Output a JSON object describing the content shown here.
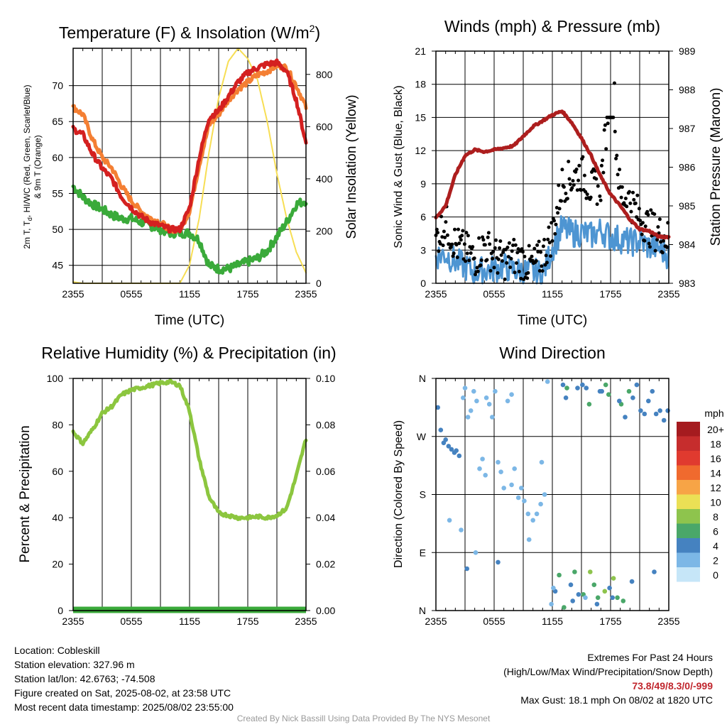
{
  "charts": {
    "temperature": {
      "title": "Temperature (F) & Insolation (W/m",
      "title_sup": "2",
      "title_end": ")",
      "ylabel_line1": "2m T, T",
      "ylabel_sub": "d",
      "ylabel_line1_end": ", HI/WC (Red, Green, Scarlet/Blue)",
      "ylabel_line2": "& 9m T (Orange)",
      "y2label": "Solar Insolation (Yellow)",
      "xlabel": "Time (UTC)"
    },
    "winds": {
      "title": "Winds (mph) & Pressure (mb)",
      "ylabel": "Sonic Wind & Gust (Blue, Black)",
      "y2label": "Station Pressure (Maroon)",
      "xlabel": "Time (UTC)"
    },
    "humidity": {
      "title": "Relative Humidity (%) & Precipitation (in)",
      "ylabel": "Percent & Precipitation"
    },
    "direction": {
      "title": "Wind Direction",
      "ylabel": "Direction (Colored By Speed)",
      "legend_title": "mph"
    }
  },
  "chart_data": [
    {
      "type": "line",
      "title": "Temperature (F) & Insolation (W/m2)",
      "xlabel": "Time (UTC)",
      "xticks": [
        "2355",
        "0555",
        "1155",
        "1755",
        "2355"
      ],
      "xlim_hours": [
        0,
        24
      ],
      "ylim": [
        42.5,
        75.2
      ],
      "yticks": [
        45,
        50,
        55,
        60,
        65,
        70
      ],
      "y2lim": [
        0,
        900
      ],
      "y2ticks": [
        0,
        200,
        400,
        600,
        800
      ],
      "series": [
        {
          "name": "2m T (Red)",
          "color": "#d42020",
          "axis": "y",
          "x": [
            0,
            1,
            2,
            3,
            4,
            5,
            6,
            7,
            8,
            9,
            10,
            11,
            12,
            13,
            14,
            15,
            16,
            17,
            18,
            19,
            20,
            21,
            22,
            23,
            24
          ],
          "y": [
            64,
            63.2,
            60.5,
            58.5,
            57,
            54.5,
            53,
            51.8,
            51,
            50.5,
            50,
            50,
            53,
            60,
            65.5,
            66.5,
            68.5,
            70.5,
            71.8,
            72.5,
            73,
            73.2,
            72,
            68,
            62
          ]
        },
        {
          "name": "Td (Green)",
          "color": "#3aaa3a",
          "axis": "y",
          "x": [
            0,
            1,
            2,
            3,
            4,
            5,
            6,
            7,
            8,
            9,
            10,
            11,
            12,
            13,
            14,
            15,
            16,
            17,
            18,
            19,
            20,
            21,
            22,
            23,
            24
          ],
          "y": [
            56,
            54.5,
            53.5,
            52.8,
            52,
            51.5,
            51.5,
            51,
            50.5,
            50,
            49.5,
            49.5,
            49.5,
            48.5,
            45,
            44.5,
            44.5,
            45,
            45.5,
            46,
            47,
            49,
            51,
            53.5,
            54
          ]
        },
        {
          "name": "9m T (Orange)",
          "color": "#f47f33",
          "axis": "y",
          "x": [
            0,
            1,
            2,
            3,
            4,
            5,
            6,
            7,
            8,
            9,
            10,
            11,
            12,
            13,
            14,
            15,
            16,
            17,
            18,
            19,
            20,
            21,
            22,
            23,
            24
          ],
          "y": [
            67,
            66,
            62.5,
            60,
            58.5,
            56,
            54,
            52.5,
            51.5,
            51,
            50,
            50,
            52.5,
            59,
            64.5,
            66,
            68,
            69.5,
            70.5,
            71.5,
            72,
            72.8,
            72.5,
            70,
            67
          ]
        },
        {
          "name": "Solar Insolation (Yellow)",
          "color": "#f7de54",
          "axis": "y2",
          "x": [
            0,
            1,
            2,
            3,
            4,
            5,
            6,
            7,
            8,
            9,
            10,
            11,
            12,
            13,
            14,
            15,
            16,
            17,
            18,
            19,
            20,
            21,
            22,
            23,
            24
          ],
          "y": [
            5,
            0,
            0,
            0,
            0,
            0,
            0,
            0,
            0,
            0,
            0,
            0,
            70,
            250,
            500,
            710,
            850,
            900,
            860,
            780,
            620,
            420,
            250,
            120,
            40
          ]
        }
      ]
    },
    {
      "type": "line",
      "title": "Winds (mph) & Pressure (mb)",
      "xlabel": "Time (UTC)",
      "xticks": [
        "2355",
        "0555",
        "1155",
        "1755",
        "2355"
      ],
      "xlim_hours": [
        0,
        24
      ],
      "ylim": [
        0,
        21
      ],
      "yticks": [
        0,
        3,
        6,
        9,
        12,
        15,
        18,
        21
      ],
      "y2lim": [
        983,
        989
      ],
      "y2ticks": [
        983,
        984,
        985,
        986,
        987,
        988,
        989
      ],
      "series": [
        {
          "name": "Sonic Wind (Blue)",
          "color": "#4e95d2",
          "axis": "y",
          "x": [
            0,
            1,
            2,
            3,
            4,
            5,
            6,
            7,
            8,
            9,
            10,
            11,
            12,
            13,
            14,
            15,
            16,
            17,
            18,
            19,
            20,
            21,
            22,
            23,
            24
          ],
          "y": [
            2.5,
            2.6,
            2,
            1.5,
            1,
            1.2,
            1.3,
            1.5,
            1.2,
            1.1,
            1,
            0.8,
            3.2,
            5,
            4.5,
            4.6,
            4.3,
            4.8,
            4.2,
            4,
            3.7,
            3.8,
            3.3,
            3.2,
            2.5
          ]
        },
        {
          "name": "Gust (Black)",
          "color": "#000000",
          "axis": "y",
          "x": [
            0,
            1,
            2,
            3,
            4,
            5,
            6,
            7,
            8,
            9,
            10,
            11,
            12,
            13,
            14,
            15,
            16,
            17,
            18,
            19,
            20,
            21,
            22,
            23,
            24
          ],
          "y": [
            4,
            5.5,
            3.5,
            3,
            2.2,
            3.5,
            2.5,
            2,
            2.5,
            2,
            1.5,
            2.5,
            4.5,
            9,
            9.5,
            10,
            8.5,
            9,
            18.1,
            8,
            7.5,
            6,
            5,
            4.5,
            4
          ]
        },
        {
          "name": "Station Pressure (Maroon)",
          "color": "#ad1e1e",
          "axis": "y2",
          "x": [
            0,
            1,
            2,
            3,
            4,
            5,
            6,
            7,
            8,
            9,
            10,
            11,
            12,
            13,
            14,
            15,
            16,
            17,
            18,
            19,
            20,
            21,
            22,
            23,
            24
          ],
          "y": [
            984.7,
            985,
            985.8,
            986.3,
            986.45,
            986.4,
            986.45,
            986.5,
            986.55,
            986.8,
            987.05,
            987.2,
            987.35,
            987.45,
            987.15,
            986.75,
            986.3,
            985.75,
            985.3,
            985,
            984.65,
            984.4,
            984.35,
            984.2,
            984.2
          ]
        }
      ],
      "max_gust_point": {
        "x": 18.4,
        "y": 18.1
      }
    },
    {
      "type": "line",
      "title": "Relative Humidity (%) & Precipitation (in)",
      "ylabel": "Percent & Precipitation",
      "xticks": [
        "2355",
        "0555",
        "1155",
        "1755",
        "2355"
      ],
      "xlim_hours": [
        0,
        24
      ],
      "ylim": [
        0,
        100
      ],
      "yticks": [
        0,
        20,
        40,
        60,
        80,
        100
      ],
      "y2lim": [
        0,
        0.1
      ],
      "y2ticks": [
        "0.00",
        "0.02",
        "0.04",
        "0.06",
        "0.08",
        "0.10"
      ],
      "series": [
        {
          "name": "Relative Humidity",
          "color": "#8cc63f",
          "axis": "y",
          "x": [
            0,
            1,
            2,
            3,
            4,
            5,
            6,
            7,
            8,
            9,
            10,
            11,
            12,
            13,
            14,
            15,
            16,
            17,
            18,
            19,
            20,
            21,
            22,
            23,
            24
          ],
          "y": [
            77,
            72,
            78,
            85,
            88,
            93,
            95,
            96,
            97,
            98,
            98.5,
            97,
            86,
            65,
            49,
            42,
            41,
            40,
            40,
            40.5,
            40,
            41,
            44,
            58,
            74
          ]
        },
        {
          "name": "Precipitation",
          "color": "#3aaa3a",
          "axis": "y2",
          "x": [
            0,
            24
          ],
          "y": [
            0,
            0
          ]
        }
      ]
    },
    {
      "type": "scatter",
      "title": "Wind Direction",
      "ylabel": "Direction (Colored By Speed)",
      "xticks": [
        "2355",
        "0555",
        "1155",
        "1755",
        "2355"
      ],
      "xlim_hours": [
        0,
        24
      ],
      "ylim": [
        0,
        360
      ],
      "yticks": [
        "N",
        "E",
        "S",
        "W",
        "N"
      ],
      "legend": {
        "title": "mph",
        "labels": [
          "20+",
          "18",
          "16",
          "14",
          "12",
          "10",
          "8",
          "6",
          "4",
          "2",
          "0"
        ],
        "colors": [
          "#a51b1f",
          "#c62d2d",
          "#e03a2f",
          "#f06a2e",
          "#f7a446",
          "#ebe055",
          "#8ec44d",
          "#4aa769",
          "#4582c0",
          "#7cb7e6",
          "#c6e6f8"
        ]
      },
      "series": [
        {
          "name": "direction",
          "x": [
            0.2,
            0.5,
            0.8,
            1.0,
            1.3,
            1.6,
            1.9,
            2.1,
            2.4,
            2.8,
            3.0,
            3.3,
            3.6,
            3.9,
            4.2,
            4.5,
            4.8,
            5.2,
            5.5,
            5.8,
            6.1,
            6.4,
            6.7,
            7.0,
            7.4,
            7.8,
            8.1,
            8.5,
            8.8,
            9.1,
            9.5,
            10.0,
            10.4,
            10.8,
            11.2,
            11.5,
            11.9,
            12.3,
            12.7,
            13.1,
            13.5,
            13.9,
            14.3,
            14.7,
            15.1,
            15.5,
            15.9,
            16.3,
            16.7,
            17.1,
            17.5,
            17.9,
            18.3,
            18.7,
            19.1,
            19.5,
            19.9,
            20.3,
            20.7,
            21.1,
            21.5,
            21.9,
            22.3,
            22.7,
            23.1,
            23.5,
            23.9,
            13.2,
            14.1,
            15.2,
            16.6,
            17.4,
            18.2,
            19.3,
            13.4,
            14.6,
            15.8,
            16.9,
            17.8,
            18.9,
            3.2,
            4.1,
            6.4,
            9.6,
            12.1,
            15.4,
            20.2,
            22.5,
            1.4,
            2.6,
            5.1,
            7.8,
            10.9
          ],
          "y": [
            315,
            280,
            260,
            265,
            255,
            250,
            245,
            248,
            240,
            330,
            345,
            300,
            310,
            340,
            325,
            220,
            235,
            330,
            320,
            300,
            340,
            230,
            215,
            190,
            325,
            335,
            220,
            175,
            190,
            170,
            150,
            140,
            150,
            165,
            180,
            355,
            10,
            30,
            55,
            350,
            345,
            40,
            60,
            25,
            350,
            345,
            60,
            40,
            20,
            340,
            350,
            35,
            50,
            20,
            320,
            300,
            340,
            330,
            350,
            310,
            305,
            325,
            340,
            305,
            310,
            295,
            310,
            5,
            15,
            25,
            10,
            30,
            20,
            15,
            330,
            345,
            320,
            340,
            335,
            325,
            65,
            90,
            75,
            110,
            35,
            20,
            45,
            60,
            140,
            125,
            210,
            195,
            230
          ],
          "speed": [
            3,
            3,
            4,
            4,
            3,
            4,
            4,
            3,
            3,
            2,
            1,
            2,
            1,
            1,
            2,
            1,
            1,
            1,
            2,
            1,
            1,
            1,
            2,
            1,
            1,
            1,
            1,
            2,
            1,
            1,
            2,
            2,
            2,
            2,
            1,
            1,
            1,
            4,
            5,
            4,
            6,
            4,
            6,
            4,
            4,
            3,
            7,
            5,
            6,
            4,
            6,
            4,
            7,
            5,
            6,
            4,
            5,
            4,
            4,
            3,
            3,
            4,
            4,
            3,
            4,
            3,
            3,
            6,
            4,
            5,
            3,
            7,
            4,
            6,
            3,
            4,
            6,
            4,
            5,
            3,
            4,
            2,
            3,
            2,
            1,
            2,
            3,
            4,
            2,
            1,
            1,
            2,
            1
          ]
        }
      ]
    }
  ],
  "info": {
    "location": "Location: Cobleskill",
    "elevation": "Station elevation: 327.96 m",
    "latlon": "Station lat/lon: 42.6763; -74.508",
    "created": "Figure created on Sat, 2025-08-02, at 23:58 UTC",
    "recent": "Most recent data timestamp: 2025/08/02 23:55:00"
  },
  "extremes": {
    "title": "Extremes For Past 24 Hours",
    "subtitle": "(High/Low/Max Wind/Precipitation/Snow Depth)",
    "values": "73.8/49/8.3/0/-999",
    "max_gust": "Max Gust: 18.1 mph On 08/02 at 1820 UTC"
  },
  "credit": "Created By Nick Bassill Using Data Provided By The NYS Mesonet"
}
